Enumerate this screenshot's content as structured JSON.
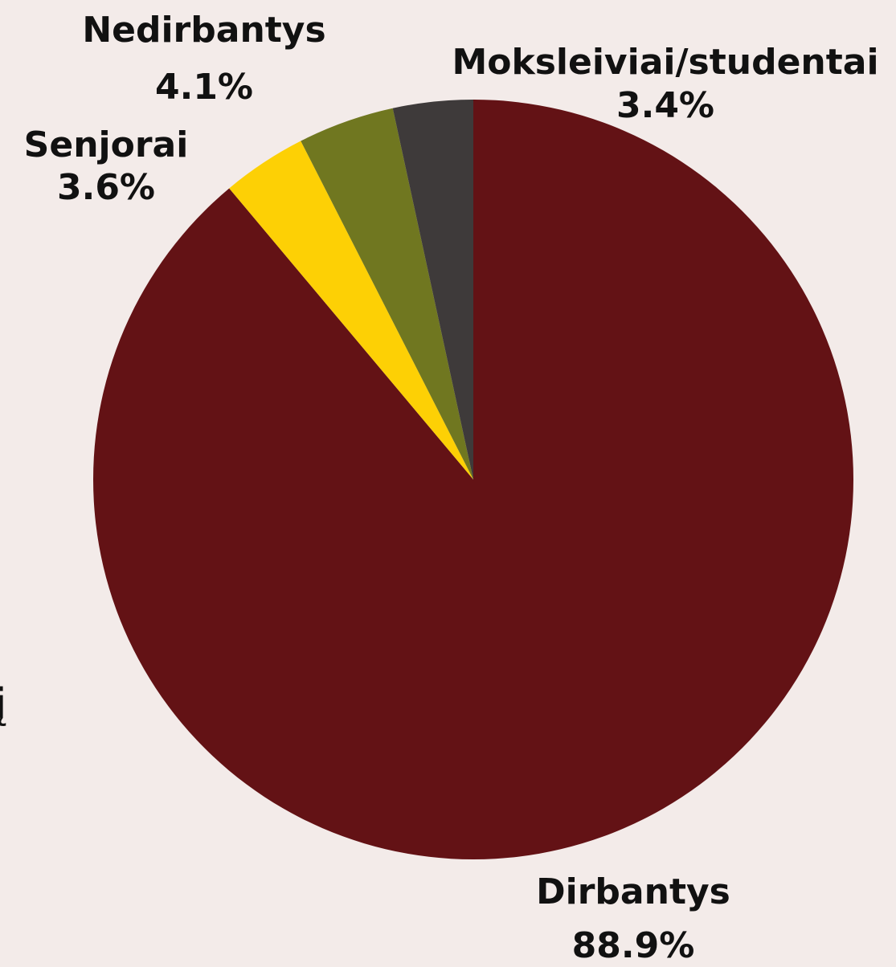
{
  "chart_data": {
    "type": "pie",
    "categories": [
      "Dirbantys",
      "Senjorai",
      "Nedirbantys",
      "Moksleiviai/studentai"
    ],
    "values": [
      88.9,
      3.6,
      4.1,
      3.4
    ],
    "value_labels": [
      "88.9%",
      "3.6%",
      "4.1%",
      "3.4%"
    ],
    "colors": [
      "#631215",
      "#fdd005",
      "#707720",
      "#3e3a3a"
    ]
  },
  "side_text": "į"
}
